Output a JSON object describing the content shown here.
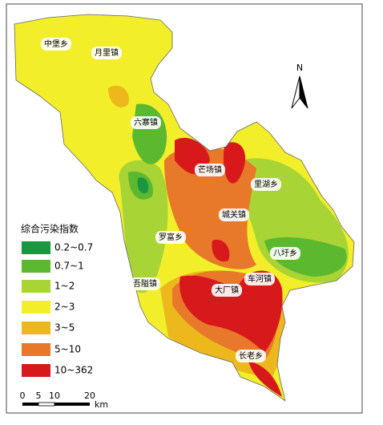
{
  "map": {
    "places": [
      "中堡乡",
      "月里镇",
      "六寨镇",
      "芒场镇",
      "里湖乡",
      "城关镇",
      "罗富乡",
      "八圩乡",
      "吾隘镇",
      "车河镇",
      "大厂镇",
      "长老乡"
    ],
    "legend": {
      "title": "综合污染指数",
      "items": [
        {
          "label": "0.2~0.7",
          "color": "#1a9641"
        },
        {
          "label": "0.7~1",
          "color": "#5cb82e"
        },
        {
          "label": "1~2",
          "color": "#a8d435"
        },
        {
          "label": "2~3",
          "color": "#f2ef2a"
        },
        {
          "label": "3~5",
          "color": "#ecb81c"
        },
        {
          "label": "5~10",
          "color": "#e8782a"
        },
        {
          "label": "10~362",
          "color": "#d7191c"
        }
      ]
    },
    "north": "N",
    "scale": {
      "ticks": [
        "0",
        "5",
        "10",
        "20"
      ],
      "unit": "km"
    }
  }
}
